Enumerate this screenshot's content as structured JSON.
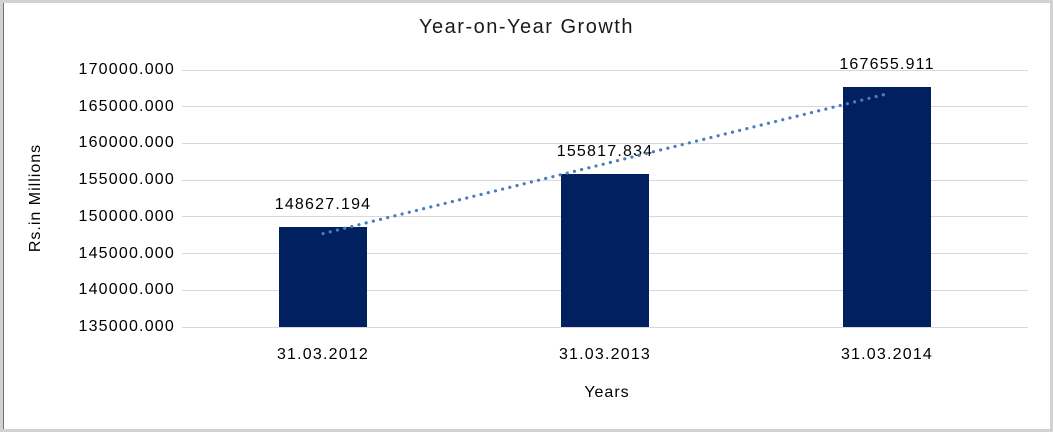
{
  "chart_data": {
    "type": "bar",
    "title": "Year-on-Year Growth",
    "xlabel": "Years",
    "ylabel": "Rs.in Millions",
    "categories": [
      "31.03.2012",
      "31.03.2013",
      "31.03.2014"
    ],
    "values": [
      148627.194,
      155817.834,
      167655.911
    ],
    "data_labels": [
      "148627.194",
      "155817.834",
      "167655.911"
    ],
    "ylim": [
      135000,
      170000
    ],
    "ytick_step": 5000,
    "ytick_labels": [
      "135000.000",
      "140000.000",
      "145000.000",
      "150000.000",
      "155000.000",
      "160000.000",
      "165000.000",
      "170000.000"
    ],
    "grid": true,
    "legend": "none",
    "colors": {
      "bar": "#002060",
      "gridline": "#d9d9d9",
      "trendline": "#4a7ebb",
      "text": "#000000",
      "frame_border": "#d2d2d2"
    },
    "trendline": {
      "type": "linear",
      "style": "dotted"
    }
  }
}
